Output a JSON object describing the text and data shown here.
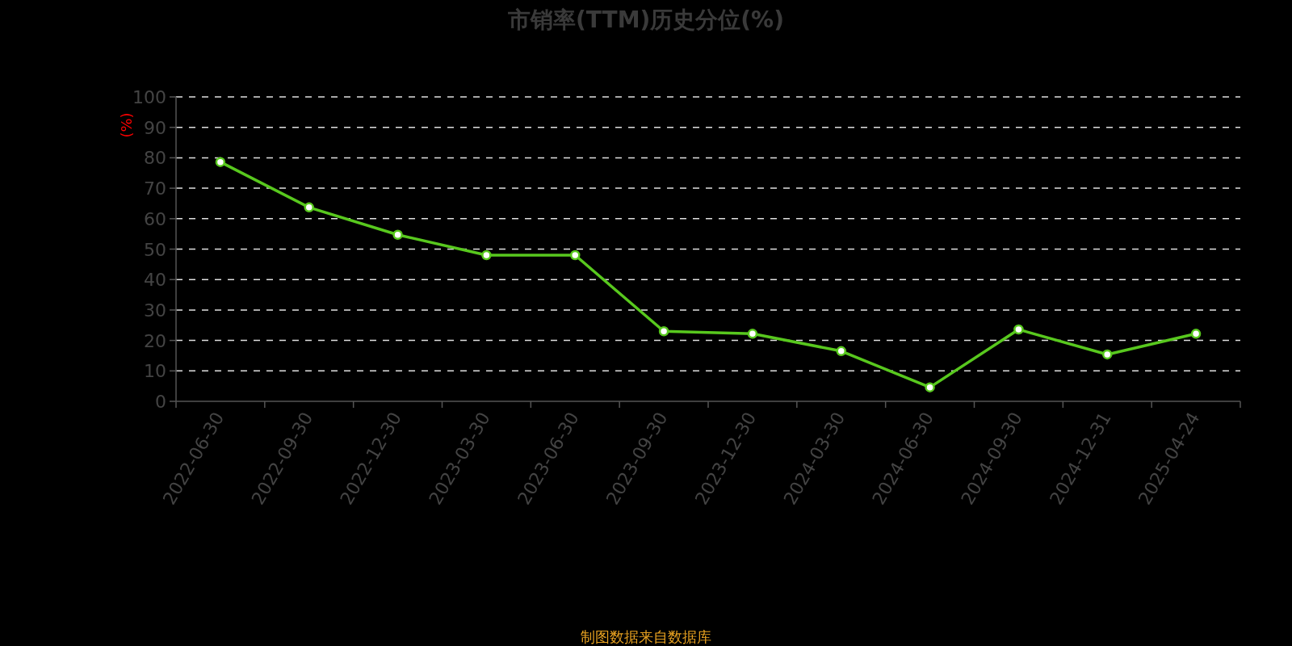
{
  "chart_data": {
    "type": "line",
    "title": "市销率(TTM)历史分位(%)",
    "ylabel": "(%)",
    "annotations": [
      "制图数据来自数据库"
    ],
    "categories": [
      "2022-06-30",
      "2022-09-30",
      "2022-12-30",
      "2023-03-30",
      "2023-06-30",
      "2023-09-30",
      "2023-12-30",
      "2024-03-30",
      "2024-06-30",
      "2024-09-30",
      "2024-12-31",
      "2025-04-24"
    ],
    "values": [
      78.6,
      63.7,
      54.7,
      48.0,
      48.0,
      23.0,
      22.2,
      16.5,
      4.6,
      23.6,
      15.4,
      22.2
    ],
    "color": "#58c81e",
    "ylim": [
      0,
      100
    ],
    "yticks": [
      0,
      10,
      20,
      30,
      40,
      50,
      60,
      70,
      80,
      90,
      100
    ],
    "grid": "y",
    "marker": "circle",
    "line_style": "solid"
  }
}
